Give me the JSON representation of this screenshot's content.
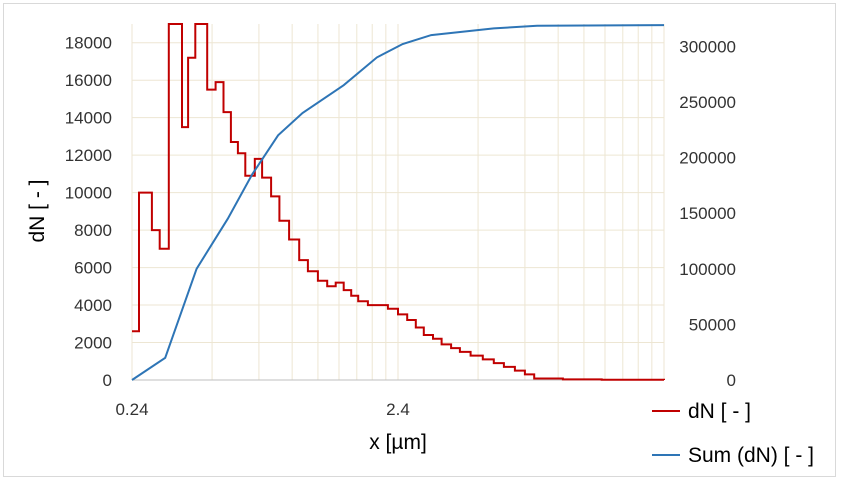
{
  "chart_data": {
    "type": "line",
    "xlabel": "x [µm]",
    "ylabel": "dN [ - ]",
    "x_scale": "log",
    "xlim": [
      0.24,
      24
    ],
    "ylim": [
      0,
      19000
    ],
    "ylim_right": [
      0,
      320000
    ],
    "x_tick_labels": [
      "0.24",
      "2.4"
    ],
    "y_tick_labels": [
      "0",
      "2000",
      "4000",
      "6000",
      "8000",
      "10000",
      "12000",
      "14000",
      "16000",
      "18000"
    ],
    "y_right_tick_labels": [
      "0",
      "50000",
      "100000",
      "150000",
      "200000",
      "250000",
      "300000"
    ],
    "grid": true,
    "legend_position": "bottom-right",
    "colors": {
      "dN": "#c00000",
      "sum": "#2e75b6",
      "grid": "#ede6d3"
    },
    "series": [
      {
        "name": "dN [ - ]",
        "axis": "left",
        "style": "step",
        "points": [
          [
            0.24,
            2600
          ],
          [
            0.255,
            10000
          ],
          [
            0.285,
            8000
          ],
          [
            0.305,
            7000
          ],
          [
            0.33,
            19000
          ],
          [
            0.37,
            13500
          ],
          [
            0.39,
            17200
          ],
          [
            0.415,
            19000
          ],
          [
            0.46,
            15500
          ],
          [
            0.495,
            15900
          ],
          [
            0.53,
            14300
          ],
          [
            0.565,
            12700
          ],
          [
            0.6,
            12100
          ],
          [
            0.64,
            10900
          ],
          [
            0.695,
            11800
          ],
          [
            0.74,
            10800
          ],
          [
            0.8,
            9800
          ],
          [
            0.86,
            8500
          ],
          [
            0.935,
            7500
          ],
          [
            1.02,
            6400
          ],
          [
            1.1,
            5800
          ],
          [
            1.2,
            5300
          ],
          [
            1.3,
            5000
          ],
          [
            1.4,
            5200
          ],
          [
            1.5,
            4800
          ],
          [
            1.6,
            4500
          ],
          [
            1.7,
            4200
          ],
          [
            1.85,
            4000
          ],
          [
            2.2,
            3800
          ],
          [
            2.4,
            3500
          ],
          [
            2.6,
            3200
          ],
          [
            2.8,
            2800
          ],
          [
            3.0,
            2400
          ],
          [
            3.25,
            2200
          ],
          [
            3.5,
            1900
          ],
          [
            3.8,
            1700
          ],
          [
            4.1,
            1500
          ],
          [
            4.5,
            1300
          ],
          [
            5.0,
            1100
          ],
          [
            5.5,
            900
          ],
          [
            6.0,
            700
          ],
          [
            6.6,
            500
          ],
          [
            7.2,
            300
          ],
          [
            7.8,
            80
          ],
          [
            10.0,
            30
          ],
          [
            14.0,
            15
          ],
          [
            24.0,
            0
          ]
        ]
      },
      {
        "name": "Sum (dN) [ - ]",
        "axis": "right",
        "style": "line",
        "points": [
          [
            0.24,
            0
          ],
          [
            0.32,
            20000
          ],
          [
            0.42,
            100000
          ],
          [
            0.55,
            145000
          ],
          [
            0.68,
            185000
          ],
          [
            0.85,
            220000
          ],
          [
            1.05,
            240000
          ],
          [
            1.5,
            265000
          ],
          [
            2.0,
            290000
          ],
          [
            2.5,
            302000
          ],
          [
            3.2,
            310000
          ],
          [
            5.5,
            316000
          ],
          [
            8.0,
            318500
          ],
          [
            24.0,
            319000
          ]
        ]
      }
    ]
  }
}
